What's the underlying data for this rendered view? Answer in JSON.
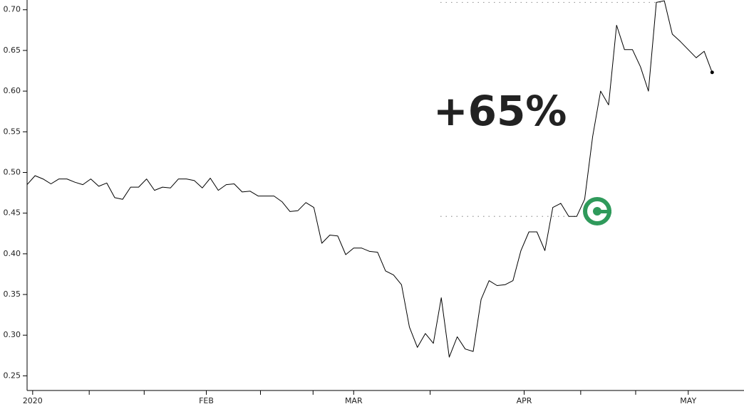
{
  "chart_data": {
    "type": "line",
    "annotation": "+65%",
    "annotation_color": "#2f9a5b",
    "color": "#000000",
    "values": [
      0.485,
      0.496,
      0.492,
      0.486,
      0.492,
      0.492,
      0.488,
      0.485,
      0.492,
      0.483,
      0.487,
      0.469,
      0.467,
      0.482,
      0.482,
      0.492,
      0.478,
      0.482,
      0.481,
      0.492,
      0.492,
      0.49,
      0.481,
      0.493,
      0.478,
      0.485,
      0.486,
      0.476,
      0.477,
      0.471,
      0.471,
      0.471,
      0.464,
      0.452,
      0.453,
      0.463,
      0.457,
      0.413,
      0.423,
      0.422,
      0.399,
      0.407,
      0.407,
      0.403,
      0.402,
      0.379,
      0.374,
      0.362,
      0.31,
      0.285,
      0.302,
      0.29,
      0.346,
      0.273,
      0.298,
      0.283,
      0.28,
      0.344,
      0.367,
      0.361,
      0.362,
      0.367,
      0.404,
      0.427,
      0.427,
      0.404,
      0.457,
      0.462,
      0.446,
      0.446,
      0.467,
      0.544,
      0.6,
      0.583,
      0.681,
      0.651,
      0.651,
      0.63,
      0.6,
      0.709,
      0.711,
      0.67,
      0.661,
      0.651,
      0.641,
      0.649,
      0.623
    ],
    "reference_lines": [
      0.709,
      0.446
    ],
    "xlim": [
      0,
      90
    ],
    "xticks": [
      {
        "value": 0.7,
        "label": "2020"
      },
      {
        "value": 22.5,
        "label": "FEB"
      },
      {
        "value": 41,
        "label": "MAR"
      },
      {
        "value": 62.4,
        "label": "APR"
      },
      {
        "value": 83,
        "label": "MAY"
      }
    ],
    "minor_xticks": [
      7.8,
      14.7,
      29.3,
      35.9,
      50.6,
      69.5,
      76.4
    ],
    "ylim": [
      0.232,
      0.712
    ],
    "yticks": [
      0.25,
      {
        "value": 0.3,
        "label": "0.30"
      },
      0.35,
      {
        "value": 0.4,
        "label": "0.40"
      },
      0.45,
      {
        "value": 0.5,
        "label": "0.50"
      },
      0.55,
      {
        "value": 0.6,
        "label": "0.60"
      },
      0.65,
      {
        "value": 0.7,
        "label": "0.70"
      }
    ]
  }
}
